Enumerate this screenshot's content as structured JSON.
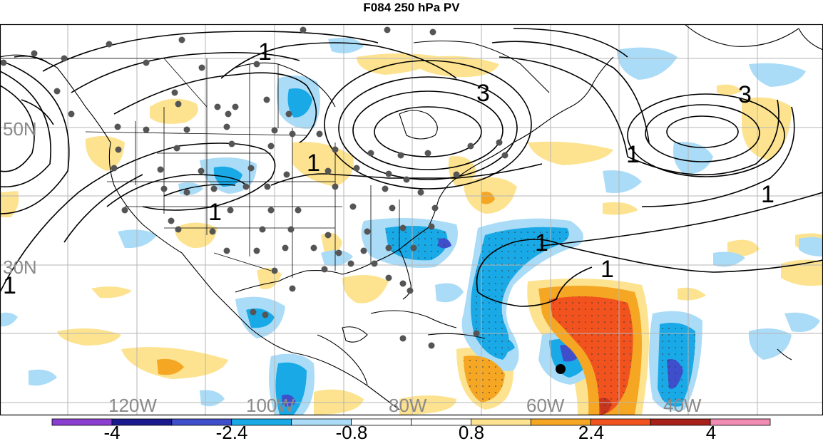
{
  "title": "F084 250 hPa PV",
  "lat_labels": [
    "50N",
    "30N"
  ],
  "lon_labels": [
    "120W",
    "100W",
    "80W",
    "60W",
    "40W"
  ],
  "contour_labels": [
    "1",
    "3",
    "3",
    "1",
    "1",
    "1",
    "1",
    "1",
    "1",
    "1"
  ],
  "colorbar": {
    "tick_labels": [
      "-4",
      "-2.4",
      "-0.8",
      "0.8",
      "2.4",
      "4"
    ],
    "colors": [
      "#8a3fd1",
      "#1a1a8c",
      "#3f4fcc",
      "#19a9e6",
      "#aadcf7",
      "#ffffff",
      "#ffffff",
      "#fde38f",
      "#f5a623",
      "#f2521e",
      "#a8201a",
      "#f08cb4"
    ]
  },
  "shading_colors": {
    "light_blue": "#aadcf7",
    "blue": "#19a9e6",
    "dark_blue": "#3f4fcc",
    "light_yellow": "#fde38f",
    "orange": "#f5a623",
    "red_orange": "#f2521e",
    "dark_red": "#a8201a"
  }
}
